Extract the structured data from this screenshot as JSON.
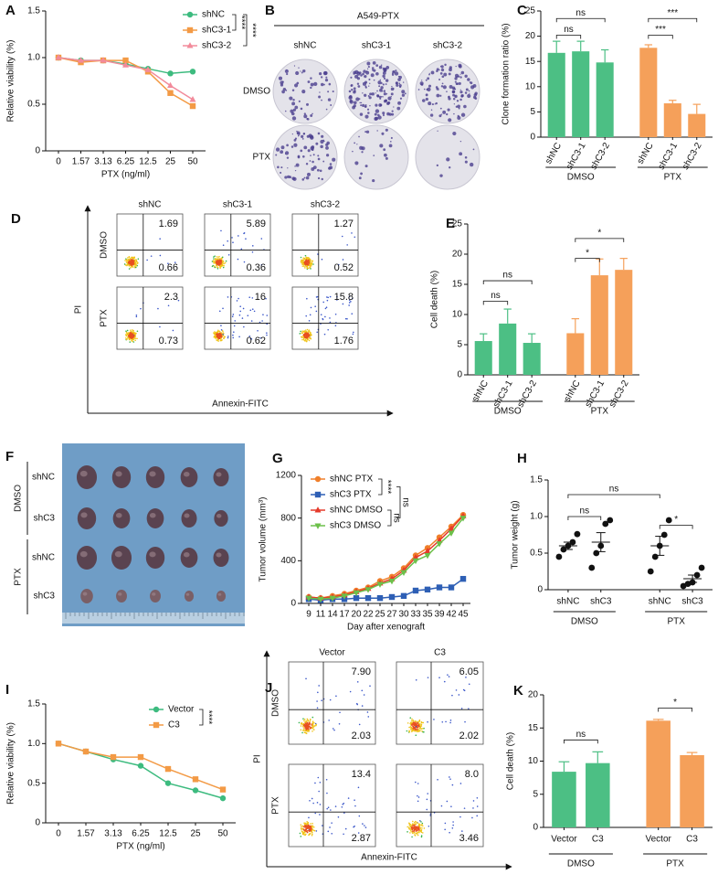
{
  "chart_data": [
    {
      "panel": "A",
      "type": "line",
      "xlabel": "PTX (ng/ml)",
      "ylabel": "Relative viability (%)",
      "categories": [
        "0",
        "1.57",
        "3.13",
        "6.25",
        "12.5",
        "25",
        "50"
      ],
      "ylim": [
        0,
        1.5
      ],
      "yticks": [
        0,
        0.5,
        {
          "value": 1,
          "label": "1.0"
        },
        {
          "value": 1.5,
          "label": "1.5"
        }
      ],
      "series": [
        {
          "name": "shNC",
          "color": "#3dbb7f",
          "values": [
            1,
            0.97,
            0.97,
            0.93,
            0.88,
            0.83,
            0.85
          ]
        },
        {
          "name": "shC3-1",
          "color": "#f39a45",
          "values": [
            1,
            0.95,
            0.97,
            0.97,
            0.85,
            0.62,
            0.48
          ]
        },
        {
          "name": "shC3-2",
          "color": "#f28b9b",
          "values": [
            1,
            0.97,
            0.97,
            0.92,
            0.87,
            0.7,
            0.55
          ]
        }
      ],
      "annotations": [
        "****",
        "****"
      ]
    },
    {
      "panel": "C",
      "type": "bar",
      "ylabel": "Clone formation ratio (%)",
      "categories": [
        "shNC",
        "shC3-1",
        "shC3-2",
        "shNC",
        "shC3-1",
        "shC3-2"
      ],
      "values": [
        16.7,
        17.0,
        14.8,
        17.7,
        6.7,
        4.6
      ],
      "errors": [
        2.3,
        2.0,
        2.5,
        0.6,
        0.6,
        1.9
      ],
      "colors": [
        "#4cbf84",
        "#4cbf84",
        "#4cbf84",
        "#f5a05a",
        "#f5a05a",
        "#f5a05a"
      ],
      "groups": [
        "DMSO",
        "PTX"
      ],
      "ylim": [
        0,
        25
      ],
      "yticks": [
        0,
        5,
        10,
        15,
        20,
        25
      ],
      "annotations": [
        "ns",
        "ns",
        "***",
        "***"
      ]
    },
    {
      "panel": "E",
      "type": "bar",
      "ylabel": "Cell death (%)",
      "categories": [
        "shNC",
        "shC3-1",
        "shC3-2",
        "shNC",
        "shC3-1",
        "shC3-2"
      ],
      "values": [
        5.6,
        8.5,
        5.3,
        6.9,
        16.5,
        17.4
      ],
      "errors": [
        1.2,
        2.4,
        1.5,
        2.4,
        2.7,
        1.9
      ],
      "colors": [
        "#4cbf84",
        "#4cbf84",
        "#4cbf84",
        "#f5a05a",
        "#f5a05a",
        "#f5a05a"
      ],
      "groups": [
        "DMSO",
        "PTX"
      ],
      "ylim": [
        0,
        25
      ],
      "yticks": [
        0,
        5,
        10,
        15,
        20,
        25
      ],
      "annotations": [
        "ns",
        "ns",
        "*",
        "*"
      ]
    },
    {
      "panel": "G",
      "type": "line",
      "xlabel": "Day after xenograft",
      "ylabel": "Tumor volume (mm³)",
      "categories": [
        "9",
        "11",
        "14",
        "17",
        "20",
        "22",
        "25",
        "27",
        "30",
        "33",
        "35",
        "39",
        "42",
        "45"
      ],
      "ylim": [
        0,
        1200
      ],
      "yticks": [
        0,
        400,
        800,
        1200
      ],
      "series": [
        {
          "name": "shNC PTX",
          "color": "#f07f2a",
          "values": [
            60,
            50,
            70,
            90,
            120,
            150,
            210,
            250,
            330,
            450,
            520,
            620,
            720,
            830
          ]
        },
        {
          "name": "shC3 PTX",
          "color": "#2e5fb5",
          "values": [
            40,
            30,
            40,
            40,
            50,
            50,
            50,
            60,
            70,
            120,
            130,
            150,
            150,
            230
          ]
        },
        {
          "name": "shNC DMSO",
          "color": "#e53a2a",
          "values": [
            60,
            50,
            60,
            80,
            110,
            140,
            190,
            230,
            310,
            430,
            490,
            590,
            700,
            820
          ]
        },
        {
          "name": "shC3 DMSO",
          "color": "#6cc04a",
          "values": [
            50,
            40,
            50,
            70,
            100,
            130,
            180,
            210,
            290,
            400,
            450,
            560,
            660,
            800
          ]
        }
      ],
      "annotations": [
        "****",
        "ns",
        "ns"
      ]
    },
    {
      "panel": "H",
      "type": "dot",
      "ylabel": "Tumor weight (g)",
      "categories": [
        "shNC",
        "shC3",
        "shNC",
        "shC3"
      ],
      "groups": [
        "DMSO",
        "PTX"
      ],
      "points": [
        [
          0.45,
          0.55,
          0.6,
          0.65,
          0.76
        ],
        [
          0.3,
          0.5,
          0.6,
          0.9,
          0.95
        ],
        [
          0.25,
          0.45,
          0.6,
          0.75,
          0.95
        ],
        [
          0.05,
          0.08,
          0.1,
          0.2,
          0.3
        ]
      ],
      "values": [
        0.6,
        0.65,
        0.6,
        0.15
      ],
      "errors": [
        0.05,
        0.13,
        0.13,
        0.05
      ],
      "ylim": [
        0,
        1.5
      ],
      "yticks": [
        0,
        0.5,
        {
          "value": 1,
          "label": "1.0"
        },
        {
          "value": 1.5,
          "label": "1.5"
        }
      ],
      "annotations": [
        "ns",
        "ns",
        "*"
      ]
    },
    {
      "panel": "I",
      "type": "line",
      "xlabel": "PTX (ng/ml)",
      "ylabel": "Relative viability (%)",
      "categories": [
        "0",
        "1.57",
        "3.13",
        "6.25",
        "12.5",
        "25",
        "50"
      ],
      "ylim": [
        0,
        1.5
      ],
      "yticks": [
        0,
        0.5,
        {
          "value": 1,
          "label": "1.0"
        },
        {
          "value": 1.5,
          "label": "1.5"
        }
      ],
      "series": [
        {
          "name": "Vector",
          "color": "#3dbb7f",
          "values": [
            1,
            0.9,
            0.8,
            0.72,
            0.5,
            0.41,
            0.31
          ]
        },
        {
          "name": "C3",
          "color": "#f39a45",
          "values": [
            1,
            0.9,
            0.83,
            0.83,
            0.68,
            0.55,
            0.42
          ]
        }
      ],
      "annotations": [
        "****"
      ]
    },
    {
      "panel": "K",
      "type": "bar",
      "ylabel": "Cell death (%)",
      "categories": [
        "Vector",
        "C3",
        "Vector",
        "C3"
      ],
      "values": [
        8.4,
        9.7,
        16.1,
        10.9
      ],
      "errors": [
        1.5,
        1.7,
        0.2,
        0.4
      ],
      "colors": [
        "#4cbf84",
        "#4cbf84",
        "#f5a05a",
        "#f5a05a"
      ],
      "groups": [
        "DMSO",
        "PTX"
      ],
      "ylim": [
        0,
        20
      ],
      "yticks": [
        0,
        5,
        10,
        15,
        20
      ],
      "annotations": [
        "ns",
        "*"
      ]
    }
  ],
  "plates": {
    "panel": "B",
    "title": "A549-PTX",
    "columns": [
      "shNC",
      "shC3-1",
      "shC3-2"
    ],
    "rows": [
      "DMSO",
      "PTX"
    ]
  },
  "flow_d": {
    "panel": "D",
    "columns": [
      "shNC",
      "shC3-1",
      "shC3-2"
    ],
    "rows": [
      "DMSO",
      "PTX"
    ],
    "ylabel": "PI",
    "xlabel": "Annexin-FITC",
    "upper_right": [
      [
        "1.69",
        "5.89",
        "1.27"
      ],
      [
        "2.3",
        "16",
        "15.8"
      ]
    ],
    "lower_right": [
      [
        "0.66",
        "0.36",
        "0.52"
      ],
      [
        "0.73",
        "0.62",
        "1.76"
      ]
    ]
  },
  "tumors": {
    "panel": "F",
    "rows": [
      "shNC",
      "shC3",
      "shNC",
      "shC3"
    ],
    "groups": [
      "DMSO",
      "PTX"
    ]
  },
  "flow_j": {
    "panel": "J",
    "columns": [
      "Vector",
      "C3"
    ],
    "rows": [
      "DMSO",
      "PTX"
    ],
    "ylabel": "PI",
    "xlabel": "Annexin-FITC",
    "upper_right": [
      [
        "7.90",
        "6.05"
      ],
      [
        "13.4",
        "8.0"
      ]
    ],
    "lower_right": [
      [
        "2.03",
        "2.02"
      ],
      [
        "2.87",
        "3.46"
      ]
    ]
  }
}
